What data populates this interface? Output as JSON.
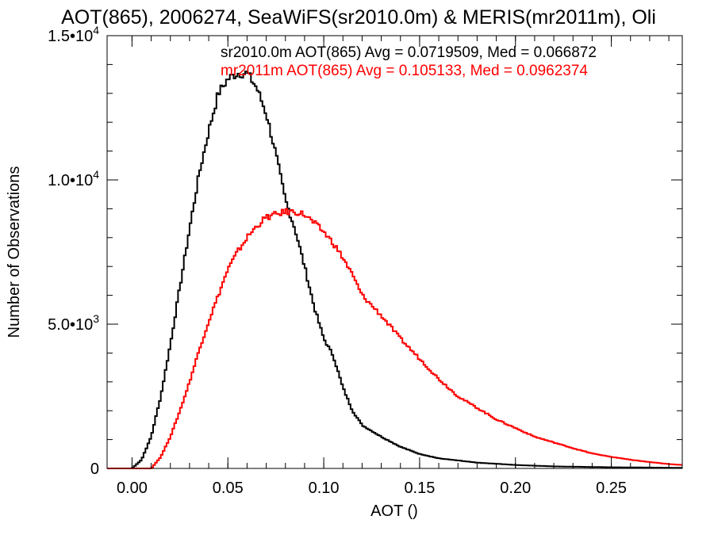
{
  "chart_data": {
    "type": "line",
    "title": "AOT(865), 2006274, SeaWiFS(sr2010.0m) & MERIS(mr2011m), Oli",
    "xlabel": "AOT ()",
    "ylabel": "Number of Observations",
    "xlim": [
      -0.013,
      0.287
    ],
    "ylim": [
      0,
      15000
    ],
    "x_ticks": [
      0.0,
      0.05,
      0.1,
      0.15,
      0.2,
      0.25
    ],
    "x_tick_labels": [
      "0.00",
      "0.05",
      "0.10",
      "0.15",
      "0.20",
      "0.25"
    ],
    "y_ticks": [
      0,
      5000,
      10000,
      15000
    ],
    "y_tick_labels": [
      {
        "mant": "0",
        "exp": ""
      },
      {
        "mant": "5.0•10",
        "exp": "3"
      },
      {
        "mant": "1.0•10",
        "exp": "4"
      },
      {
        "mant": "1.5•10",
        "exp": "4"
      }
    ],
    "step": "histogram",
    "series": [
      {
        "name": "sr2010.0m",
        "color": "#000000",
        "legend": "sr2010.0m AOT(865) Avg = 0.0719509, Med = 0.066872",
        "x": [
          -0.013,
          0,
          0.005,
          0.01,
          0.015,
          0.02,
          0.025,
          0.03,
          0.035,
          0.04,
          0.045,
          0.05,
          0.055,
          0.06,
          0.065,
          0.07,
          0.075,
          0.08,
          0.085,
          0.09,
          0.095,
          0.1,
          0.105,
          0.11,
          0.115,
          0.12,
          0.13,
          0.14,
          0.15,
          0.16,
          0.18,
          0.2,
          0.22,
          0.25,
          0.287
        ],
        "y": [
          0,
          0,
          300,
          1100,
          2500,
          4300,
          6300,
          8300,
          10200,
          11700,
          13000,
          13500,
          13700,
          13700,
          13200,
          12300,
          10900,
          9300,
          8300,
          7000,
          5600,
          4500,
          3900,
          2800,
          2000,
          1500,
          1100,
          750,
          500,
          350,
          200,
          120,
          70,
          40,
          20
        ]
      },
      {
        "name": "mr2011m",
        "color": "#ff0000",
        "legend": "mr2011m AOT(865) Avg = 0.105133, Med = 0.0962374",
        "x": [
          -0.013,
          0.01,
          0.015,
          0.02,
          0.025,
          0.03,
          0.035,
          0.04,
          0.045,
          0.05,
          0.055,
          0.06,
          0.065,
          0.07,
          0.075,
          0.08,
          0.085,
          0.09,
          0.095,
          0.1,
          0.105,
          0.11,
          0.115,
          0.12,
          0.13,
          0.14,
          0.15,
          0.16,
          0.17,
          0.18,
          0.19,
          0.2,
          0.21,
          0.22,
          0.23,
          0.24,
          0.25,
          0.26,
          0.27,
          0.28,
          0.287
        ],
        "y": [
          0,
          0,
          400,
          1100,
          2000,
          3000,
          4100,
          5100,
          6000,
          6900,
          7500,
          8000,
          8400,
          8700,
          8800,
          8900,
          8900,
          8800,
          8500,
          8200,
          7800,
          7300,
          6700,
          6000,
          5300,
          4500,
          3800,
          3100,
          2500,
          2100,
          1700,
          1400,
          1100,
          900,
          700,
          520,
          400,
          300,
          220,
          150,
          120
        ]
      }
    ]
  }
}
